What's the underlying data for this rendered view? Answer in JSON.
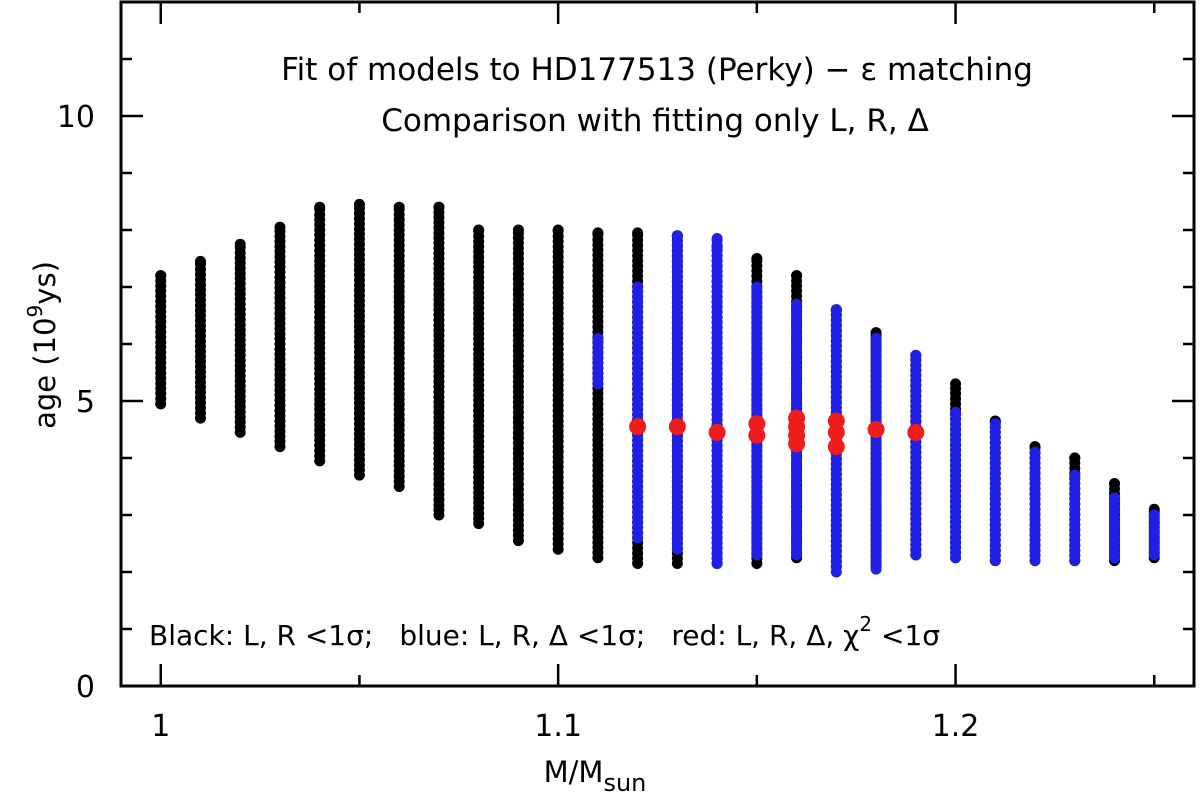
{
  "chart_data": {
    "type": "scatter",
    "title_line1": "Fit of models to HD177513 (Perky) − ε matching",
    "title_line2": "Comparison with fitting only L, R, Δ",
    "xlabel": "M/M",
    "xlabel_sub": "sun",
    "ylabel_prefix": "age (10",
    "ylabel_sup": "9",
    "ylabel_suffix": "ys)",
    "xlim": [
      0.99,
      1.26
    ],
    "ylim": [
      0,
      12
    ],
    "x_tick_labels": [
      {
        "value": 1.0,
        "label": "1"
      },
      {
        "value": 1.1,
        "label": "1.1"
      },
      {
        "value": 1.2,
        "label": "1.2"
      }
    ],
    "y_tick_labels": [
      {
        "value": 0,
        "label": "0"
      },
      {
        "value": 5,
        "label": "5"
      },
      {
        "value": 10,
        "label": "10"
      }
    ],
    "x_minor_step": 0.05,
    "y_minor_step": 1,
    "legend_parts": {
      "black": "Black: L, R <1σ;",
      "blue": "blue: L, R, Δ <1σ;",
      "red_prefix": "red: L, R, Δ, χ",
      "red_sup": "2",
      "red_suffix": " <1σ"
    },
    "colors": {
      "black": "#000000",
      "blue": "#1f1fe6",
      "red": "#ee1c1c"
    },
    "series": [
      {
        "name": "Black: L, R <1σ",
        "color": "black",
        "columns": [
          {
            "x": 1.0,
            "ymin": 4.95,
            "ymax": 7.2
          },
          {
            "x": 1.01,
            "ymin": 4.7,
            "ymax": 7.45
          },
          {
            "x": 1.02,
            "ymin": 4.45,
            "ymax": 7.75
          },
          {
            "x": 1.03,
            "ymin": 4.2,
            "ymax": 8.05
          },
          {
            "x": 1.04,
            "ymin": 3.95,
            "ymax": 8.4
          },
          {
            "x": 1.05,
            "ymin": 3.7,
            "ymax": 8.45
          },
          {
            "x": 1.06,
            "ymin": 3.5,
            "ymax": 8.4
          },
          {
            "x": 1.07,
            "ymin": 3.0,
            "ymax": 8.4
          },
          {
            "x": 1.08,
            "ymin": 2.85,
            "ymax": 8.0
          },
          {
            "x": 1.09,
            "ymin": 2.55,
            "ymax": 8.0
          },
          {
            "x": 1.1,
            "ymin": 2.4,
            "ymax": 8.0
          },
          {
            "x": 1.11,
            "ymin": 2.25,
            "ymax": 7.95
          },
          {
            "x": 1.12,
            "ymin": 2.15,
            "ymax": 7.95
          },
          {
            "x": 1.13,
            "ymin": 2.15,
            "ymax": 7.9
          },
          {
            "x": 1.14,
            "ymin": 2.15,
            "ymax": 7.7
          },
          {
            "x": 1.15,
            "ymin": 2.15,
            "ymax": 7.5
          },
          {
            "x": 1.16,
            "ymin": 2.25,
            "ymax": 7.2
          },
          {
            "x": 1.17,
            "ymin": 2.1,
            "ymax": 6.6
          },
          {
            "x": 1.18,
            "ymin": 2.1,
            "ymax": 6.2
          },
          {
            "x": 1.19,
            "ymin": 2.3,
            "ymax": 5.8
          },
          {
            "x": 1.2,
            "ymin": 2.25,
            "ymax": 5.3
          },
          {
            "x": 1.21,
            "ymin": 2.2,
            "ymax": 4.65
          },
          {
            "x": 1.22,
            "ymin": 2.2,
            "ymax": 4.2
          },
          {
            "x": 1.23,
            "ymin": 2.2,
            "ymax": 4.0
          },
          {
            "x": 1.24,
            "ymin": 2.2,
            "ymax": 3.55
          },
          {
            "x": 1.25,
            "ymin": 2.25,
            "ymax": 3.1
          }
        ]
      },
      {
        "name": "blue: L, R, Δ <1σ",
        "color": "blue",
        "columns": [
          {
            "x": 1.11,
            "ymin": 5.3,
            "ymax": 6.1
          },
          {
            "x": 1.12,
            "ymin": 2.6,
            "ymax": 7.0
          },
          {
            "x": 1.13,
            "ymin": 2.4,
            "ymax": 7.9
          },
          {
            "x": 1.14,
            "ymin": 2.15,
            "ymax": 7.85
          },
          {
            "x": 1.15,
            "ymin": 2.3,
            "ymax": 7.0
          },
          {
            "x": 1.16,
            "ymin": 2.3,
            "ymax": 6.7
          },
          {
            "x": 1.17,
            "ymin": 2.0,
            "ymax": 6.6
          },
          {
            "x": 1.18,
            "ymin": 2.05,
            "ymax": 6.1
          },
          {
            "x": 1.19,
            "ymin": 2.3,
            "ymax": 5.8
          },
          {
            "x": 1.2,
            "ymin": 2.25,
            "ymax": 4.8
          },
          {
            "x": 1.21,
            "ymin": 2.2,
            "ymax": 4.6
          },
          {
            "x": 1.22,
            "ymin": 2.2,
            "ymax": 4.1
          },
          {
            "x": 1.23,
            "ymin": 2.2,
            "ymax": 3.7
          },
          {
            "x": 1.24,
            "ymin": 2.25,
            "ymax": 3.3
          },
          {
            "x": 1.25,
            "ymin": 2.3,
            "ymax": 3.0
          }
        ]
      },
      {
        "name": "red: L, R, Δ, χ² <1σ",
        "color": "red",
        "points": [
          {
            "x": 1.12,
            "y": 4.55
          },
          {
            "x": 1.13,
            "y": 4.55
          },
          {
            "x": 1.14,
            "y": 4.45
          },
          {
            "x": 1.15,
            "y": 4.6
          },
          {
            "x": 1.15,
            "y": 4.4
          },
          {
            "x": 1.16,
            "y": 4.7
          },
          {
            "x": 1.16,
            "y": 4.55
          },
          {
            "x": 1.16,
            "y": 4.4
          },
          {
            "x": 1.16,
            "y": 4.25
          },
          {
            "x": 1.17,
            "y": 4.65
          },
          {
            "x": 1.17,
            "y": 4.45
          },
          {
            "x": 1.17,
            "y": 4.2
          },
          {
            "x": 1.18,
            "y": 4.5
          },
          {
            "x": 1.19,
            "y": 4.45
          }
        ]
      }
    ]
  }
}
